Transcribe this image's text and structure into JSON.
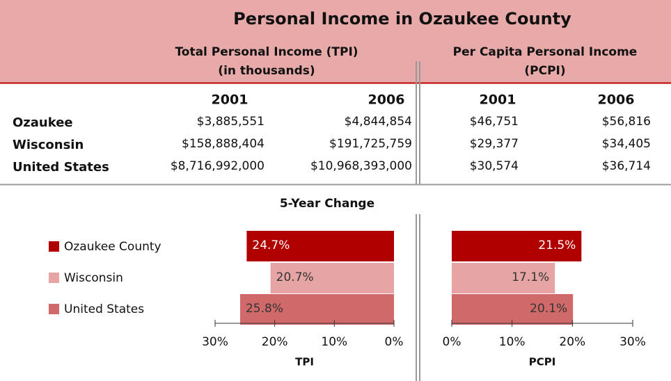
{
  "title": "Personal Income in Ozaukee County",
  "table": {
    "groups": [
      {
        "lines": [
          "Total Personal Income (TPI)",
          "(in thousands)"
        ]
      },
      {
        "lines": [
          "Per Capita Personal Income",
          "(PCPI)"
        ]
      }
    ],
    "years": [
      "2001",
      "2006",
      "2001",
      "2006"
    ],
    "rows": [
      {
        "label": "Ozaukee",
        "cells": [
          "$3,885,551",
          "$4,844,854",
          "$46,751",
          "$56,816"
        ]
      },
      {
        "label": "Wisconsin",
        "cells": [
          "$158,888,404",
          "$191,725,759",
          "$29,377",
          "$34,405"
        ]
      },
      {
        "label": "United States",
        "cells": [
          "$8,716,992,000",
          "$10,968,393,000",
          "$30,574",
          "$36,714"
        ]
      }
    ]
  },
  "section_title": "5-Year Change",
  "chart_data": [
    {
      "type": "bar",
      "orientation": "horizontal",
      "xlabel": "TPI",
      "categories": [
        "Ozaukee County",
        "Wisconsin",
        "United States"
      ],
      "values": [
        24.7,
        20.7,
        25.8
      ],
      "value_labels": [
        "24.7%",
        "20.7%",
        "25.8%"
      ],
      "colors": [
        "#b00000",
        "#e6a4a4",
        "#d06a6a"
      ],
      "xlim": [
        30,
        0
      ],
      "xticks": [
        {
          "value": 30,
          "label": "30%"
        },
        {
          "value": 20,
          "label": "20%"
        },
        {
          "value": 10,
          "label": "10%"
        },
        {
          "value": 0,
          "label": "0%"
        }
      ],
      "legend": "left"
    },
    {
      "type": "bar",
      "orientation": "horizontal",
      "xlabel": "PCPI",
      "categories": [
        "Ozaukee County",
        "Wisconsin",
        "United States"
      ],
      "values": [
        21.5,
        17.1,
        20.1
      ],
      "value_labels": [
        "21.5%",
        "17.1%",
        "20.1%"
      ],
      "colors": [
        "#b00000",
        "#e6a4a4",
        "#d06a6a"
      ],
      "xlim": [
        0,
        30
      ],
      "xticks": [
        {
          "value": 0,
          "label": "0%"
        },
        {
          "value": 10,
          "label": "10%"
        },
        {
          "value": 20,
          "label": "20%"
        },
        {
          "value": 30,
          "label": "30%"
        }
      ]
    }
  ]
}
